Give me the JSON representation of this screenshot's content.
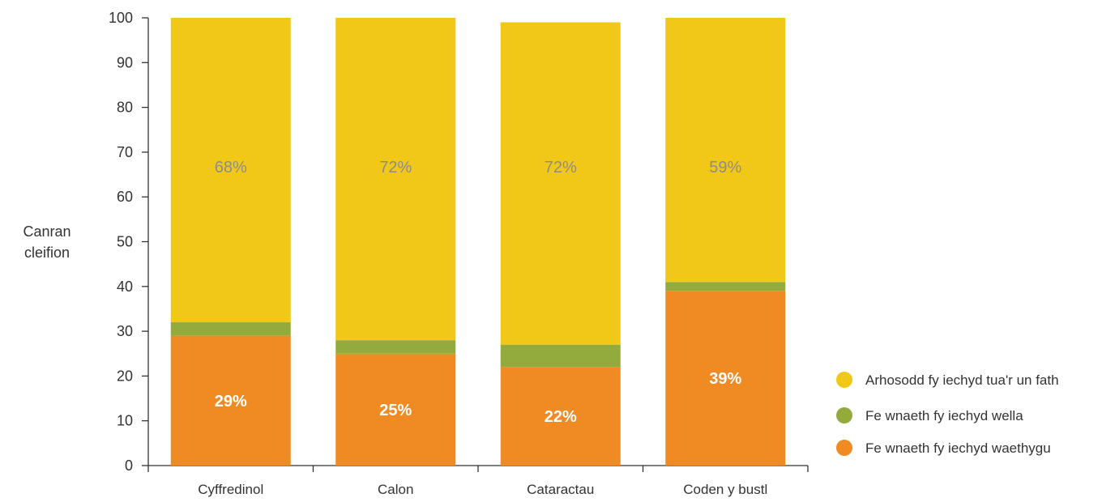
{
  "chart_data": {
    "type": "bar",
    "stacked": true,
    "categories": [
      "Cyffredinol",
      "Calon",
      "Cataractau",
      "Coden y bustl"
    ],
    "series": [
      {
        "name": "Fe wnaeth fy iechyd waethygu",
        "values": [
          29,
          25,
          22,
          39
        ],
        "color": "#f08a23"
      },
      {
        "name": "Fe wnaeth fy iechyd wella",
        "values": [
          3,
          3,
          5,
          2
        ],
        "color": "#93ab3c"
      },
      {
        "name": "Arhosodd fy iechyd tua'r un fath",
        "values": [
          68,
          72,
          72,
          59
        ],
        "color": "#f2c818"
      }
    ],
    "data_labels": {
      "bottom": [
        "29%",
        "25%",
        "22%",
        "39%"
      ],
      "top": [
        "68%",
        "72%",
        "72%",
        "59%"
      ]
    },
    "ylabel": "Canran cleifion",
    "ylabel_lines": [
      "Canran",
      "cleifion"
    ],
    "ylim": [
      0,
      100
    ],
    "yticks": [
      0,
      10,
      20,
      30,
      40,
      50,
      60,
      70,
      80,
      90,
      100
    ],
    "legend": {
      "placement": "right",
      "entries": [
        {
          "label": "Arhosodd fy iechyd tua'r un fath",
          "color": "#f2c818"
        },
        {
          "label": "Fe wnaeth fy iechyd wella",
          "color": "#93ab3c"
        },
        {
          "label": "Fe wnaeth fy iechyd waethygu",
          "color": "#f08a23"
        }
      ]
    },
    "grid": false
  }
}
